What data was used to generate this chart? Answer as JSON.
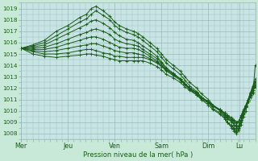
{
  "xlabel": "Pression niveau de la mer( hPa )",
  "bg_color": "#c8e8d8",
  "plot_bg_color": "#c8e4e4",
  "grid_color": "#99bbbb",
  "line_color": "#1a5c1a",
  "ylim": [
    1007.5,
    1019.5
  ],
  "yticks": [
    1008,
    1009,
    1010,
    1011,
    1012,
    1013,
    1014,
    1015,
    1016,
    1017,
    1018,
    1019
  ],
  "day_labels": [
    "Mer",
    "Jeu",
    "Ven",
    "Sam",
    "Dim",
    "Lu"
  ],
  "day_positions": [
    0,
    0.2,
    0.4,
    0.6,
    0.8,
    0.933
  ],
  "xlim": [
    0,
    1.0
  ],
  "series": [
    {
      "points": [
        [
          0,
          1015.5
        ],
        [
          0.05,
          1015.8
        ],
        [
          0.1,
          1016.2
        ],
        [
          0.15,
          1017.0
        ],
        [
          0.2,
          1017.5
        ],
        [
          0.25,
          1018.2
        ],
        [
          0.28,
          1018.5
        ],
        [
          0.3,
          1019.0
        ],
        [
          0.32,
          1019.2
        ],
        [
          0.35,
          1018.8
        ],
        [
          0.38,
          1018.3
        ],
        [
          0.4,
          1017.8
        ],
        [
          0.42,
          1017.5
        ],
        [
          0.45,
          1017.2
        ],
        [
          0.48,
          1017.0
        ],
        [
          0.5,
          1016.8
        ],
        [
          0.52,
          1016.5
        ],
        [
          0.55,
          1016.0
        ],
        [
          0.58,
          1015.5
        ],
        [
          0.6,
          1015.0
        ],
        [
          0.62,
          1014.5
        ],
        [
          0.65,
          1014.0
        ],
        [
          0.68,
          1013.5
        ],
        [
          0.7,
          1013.0
        ],
        [
          0.72,
          1012.5
        ],
        [
          0.75,
          1012.0
        ],
        [
          0.77,
          1011.5
        ],
        [
          0.8,
          1011.0
        ],
        [
          0.82,
          1010.5
        ],
        [
          0.85,
          1010.0
        ],
        [
          0.87,
          1009.5
        ],
        [
          0.88,
          1009.0
        ],
        [
          0.9,
          1008.5
        ],
        [
          0.91,
          1008.2
        ],
        [
          0.92,
          1008.0
        ],
        [
          0.93,
          1008.3
        ],
        [
          0.94,
          1008.8
        ],
        [
          0.95,
          1009.5
        ],
        [
          0.96,
          1010.0
        ],
        [
          0.97,
          1010.8
        ],
        [
          0.98,
          1011.5
        ],
        [
          0.99,
          1012.0
        ],
        [
          1.0,
          1012.5
        ]
      ]
    },
    {
      "points": [
        [
          0,
          1015.5
        ],
        [
          0.05,
          1015.7
        ],
        [
          0.1,
          1016.0
        ],
        [
          0.15,
          1016.6
        ],
        [
          0.2,
          1017.2
        ],
        [
          0.25,
          1017.8
        ],
        [
          0.28,
          1018.1
        ],
        [
          0.3,
          1018.5
        ],
        [
          0.32,
          1018.8
        ],
        [
          0.35,
          1018.4
        ],
        [
          0.38,
          1018.0
        ],
        [
          0.4,
          1017.5
        ],
        [
          0.42,
          1017.2
        ],
        [
          0.45,
          1016.9
        ],
        [
          0.48,
          1016.7
        ],
        [
          0.5,
          1016.5
        ],
        [
          0.52,
          1016.2
        ],
        [
          0.55,
          1015.7
        ],
        [
          0.58,
          1015.2
        ],
        [
          0.6,
          1014.7
        ],
        [
          0.62,
          1014.2
        ],
        [
          0.65,
          1013.7
        ],
        [
          0.68,
          1013.2
        ],
        [
          0.7,
          1012.7
        ],
        [
          0.72,
          1012.2
        ],
        [
          0.75,
          1011.7
        ],
        [
          0.77,
          1011.2
        ],
        [
          0.8,
          1010.7
        ],
        [
          0.82,
          1010.2
        ],
        [
          0.85,
          1009.8
        ],
        [
          0.87,
          1009.4
        ],
        [
          0.88,
          1009.0
        ],
        [
          0.9,
          1008.7
        ],
        [
          0.91,
          1008.4
        ],
        [
          0.92,
          1008.1
        ],
        [
          0.93,
          1008.4
        ],
        [
          0.94,
          1009.0
        ],
        [
          0.95,
          1009.7
        ],
        [
          0.96,
          1010.3
        ],
        [
          0.97,
          1011.0
        ],
        [
          0.98,
          1011.6
        ],
        [
          0.99,
          1012.2
        ],
        [
          1.0,
          1012.8
        ]
      ]
    },
    {
      "points": [
        [
          0,
          1015.5
        ],
        [
          0.05,
          1015.6
        ],
        [
          0.1,
          1015.8
        ],
        [
          0.15,
          1016.3
        ],
        [
          0.2,
          1016.8
        ],
        [
          0.25,
          1017.3
        ],
        [
          0.28,
          1017.6
        ],
        [
          0.3,
          1017.9
        ],
        [
          0.32,
          1018.0
        ],
        [
          0.35,
          1017.7
        ],
        [
          0.38,
          1017.3
        ],
        [
          0.4,
          1016.9
        ],
        [
          0.42,
          1016.6
        ],
        [
          0.45,
          1016.3
        ],
        [
          0.48,
          1016.2
        ],
        [
          0.5,
          1016.0
        ],
        [
          0.52,
          1015.7
        ],
        [
          0.55,
          1015.3
        ],
        [
          0.58,
          1014.8
        ],
        [
          0.6,
          1014.3
        ],
        [
          0.62,
          1013.8
        ],
        [
          0.65,
          1013.3
        ],
        [
          0.68,
          1012.8
        ],
        [
          0.7,
          1012.3
        ],
        [
          0.72,
          1011.9
        ],
        [
          0.75,
          1011.4
        ],
        [
          0.77,
          1011.0
        ],
        [
          0.8,
          1010.5
        ],
        [
          0.82,
          1010.1
        ],
        [
          0.85,
          1009.7
        ],
        [
          0.87,
          1009.3
        ],
        [
          0.88,
          1009.0
        ],
        [
          0.9,
          1008.7
        ],
        [
          0.91,
          1008.5
        ],
        [
          0.92,
          1008.3
        ],
        [
          0.93,
          1008.5
        ],
        [
          0.94,
          1009.1
        ],
        [
          0.95,
          1009.8
        ],
        [
          0.96,
          1010.4
        ],
        [
          0.97,
          1011.0
        ],
        [
          0.98,
          1011.6
        ],
        [
          0.99,
          1012.1
        ],
        [
          1.0,
          1012.6
        ]
      ]
    },
    {
      "points": [
        [
          0,
          1015.5
        ],
        [
          0.05,
          1015.5
        ],
        [
          0.1,
          1015.6
        ],
        [
          0.15,
          1015.9
        ],
        [
          0.2,
          1016.3
        ],
        [
          0.25,
          1016.7
        ],
        [
          0.28,
          1016.9
        ],
        [
          0.3,
          1017.1
        ],
        [
          0.32,
          1017.2
        ],
        [
          0.35,
          1017.0
        ],
        [
          0.38,
          1016.7
        ],
        [
          0.4,
          1016.3
        ],
        [
          0.42,
          1016.1
        ],
        [
          0.45,
          1015.9
        ],
        [
          0.48,
          1015.8
        ],
        [
          0.5,
          1015.7
        ],
        [
          0.52,
          1015.4
        ],
        [
          0.55,
          1015.0
        ],
        [
          0.58,
          1014.6
        ],
        [
          0.6,
          1014.2
        ],
        [
          0.62,
          1013.7
        ],
        [
          0.65,
          1013.3
        ],
        [
          0.68,
          1012.8
        ],
        [
          0.7,
          1012.4
        ],
        [
          0.72,
          1012.0
        ],
        [
          0.75,
          1011.6
        ],
        [
          0.77,
          1011.2
        ],
        [
          0.8,
          1010.8
        ],
        [
          0.82,
          1010.4
        ],
        [
          0.85,
          1010.0
        ],
        [
          0.87,
          1009.6
        ],
        [
          0.88,
          1009.3
        ],
        [
          0.9,
          1009.0
        ],
        [
          0.91,
          1008.8
        ],
        [
          0.92,
          1008.5
        ],
        [
          0.93,
          1008.6
        ],
        [
          0.94,
          1009.2
        ],
        [
          0.95,
          1009.8
        ],
        [
          0.96,
          1010.4
        ],
        [
          0.97,
          1011.0
        ],
        [
          0.98,
          1011.5
        ],
        [
          0.99,
          1012.0
        ],
        [
          1.0,
          1012.5
        ]
      ]
    },
    {
      "points": [
        [
          0,
          1015.5
        ],
        [
          0.05,
          1015.4
        ],
        [
          0.1,
          1015.4
        ],
        [
          0.15,
          1015.6
        ],
        [
          0.2,
          1015.9
        ],
        [
          0.25,
          1016.2
        ],
        [
          0.28,
          1016.4
        ],
        [
          0.3,
          1016.5
        ],
        [
          0.32,
          1016.5
        ],
        [
          0.35,
          1016.3
        ],
        [
          0.38,
          1016.0
        ],
        [
          0.4,
          1015.8
        ],
        [
          0.42,
          1015.6
        ],
        [
          0.45,
          1015.5
        ],
        [
          0.48,
          1015.5
        ],
        [
          0.5,
          1015.4
        ],
        [
          0.52,
          1015.2
        ],
        [
          0.55,
          1014.8
        ],
        [
          0.58,
          1014.4
        ],
        [
          0.6,
          1014.0
        ],
        [
          0.62,
          1013.6
        ],
        [
          0.65,
          1013.2
        ],
        [
          0.68,
          1012.8
        ],
        [
          0.7,
          1012.4
        ],
        [
          0.72,
          1012.0
        ],
        [
          0.75,
          1011.6
        ],
        [
          0.77,
          1011.2
        ],
        [
          0.8,
          1010.8
        ],
        [
          0.82,
          1010.4
        ],
        [
          0.85,
          1010.1
        ],
        [
          0.87,
          1009.7
        ],
        [
          0.88,
          1009.4
        ],
        [
          0.9,
          1009.1
        ],
        [
          0.91,
          1008.8
        ],
        [
          0.92,
          1008.6
        ],
        [
          0.93,
          1008.7
        ],
        [
          0.94,
          1009.2
        ],
        [
          0.95,
          1009.8
        ],
        [
          0.96,
          1010.3
        ],
        [
          0.97,
          1010.8
        ],
        [
          0.98,
          1011.3
        ],
        [
          0.99,
          1011.8
        ],
        [
          1.0,
          1012.3
        ]
      ]
    },
    {
      "points": [
        [
          0,
          1015.5
        ],
        [
          0.05,
          1015.3
        ],
        [
          0.1,
          1015.2
        ],
        [
          0.15,
          1015.3
        ],
        [
          0.2,
          1015.5
        ],
        [
          0.25,
          1015.7
        ],
        [
          0.28,
          1015.8
        ],
        [
          0.3,
          1015.9
        ],
        [
          0.32,
          1015.9
        ],
        [
          0.35,
          1015.7
        ],
        [
          0.38,
          1015.5
        ],
        [
          0.4,
          1015.3
        ],
        [
          0.42,
          1015.2
        ],
        [
          0.45,
          1015.1
        ],
        [
          0.48,
          1015.1
        ],
        [
          0.5,
          1015.0
        ],
        [
          0.52,
          1014.9
        ],
        [
          0.55,
          1014.6
        ],
        [
          0.58,
          1014.3
        ],
        [
          0.6,
          1014.0
        ],
        [
          0.62,
          1013.6
        ],
        [
          0.65,
          1013.2
        ],
        [
          0.68,
          1012.8
        ],
        [
          0.7,
          1012.4
        ],
        [
          0.72,
          1012.0
        ],
        [
          0.75,
          1011.6
        ],
        [
          0.77,
          1011.2
        ],
        [
          0.8,
          1010.8
        ],
        [
          0.82,
          1010.5
        ],
        [
          0.85,
          1010.1
        ],
        [
          0.87,
          1009.8
        ],
        [
          0.88,
          1009.5
        ],
        [
          0.9,
          1009.2
        ],
        [
          0.91,
          1009.0
        ],
        [
          0.92,
          1008.8
        ],
        [
          0.93,
          1009.0
        ],
        [
          0.94,
          1009.5
        ],
        [
          0.95,
          1010.0
        ],
        [
          0.96,
          1010.5
        ],
        [
          0.97,
          1011.0
        ],
        [
          0.98,
          1011.4
        ],
        [
          0.99,
          1011.8
        ],
        [
          1.0,
          1012.2
        ]
      ]
    },
    {
      "points": [
        [
          0,
          1015.5
        ],
        [
          0.05,
          1015.2
        ],
        [
          0.1,
          1015.0
        ],
        [
          0.15,
          1015.0
        ],
        [
          0.2,
          1015.1
        ],
        [
          0.25,
          1015.3
        ],
        [
          0.28,
          1015.4
        ],
        [
          0.3,
          1015.4
        ],
        [
          0.32,
          1015.3
        ],
        [
          0.35,
          1015.1
        ],
        [
          0.38,
          1015.0
        ],
        [
          0.4,
          1014.8
        ],
        [
          0.42,
          1014.8
        ],
        [
          0.45,
          1014.7
        ],
        [
          0.48,
          1014.7
        ],
        [
          0.5,
          1014.7
        ],
        [
          0.52,
          1014.7
        ],
        [
          0.55,
          1014.5
        ],
        [
          0.58,
          1014.2
        ],
        [
          0.6,
          1013.9
        ],
        [
          0.62,
          1013.5
        ],
        [
          0.65,
          1013.1
        ],
        [
          0.68,
          1012.7
        ],
        [
          0.7,
          1012.3
        ],
        [
          0.72,
          1011.9
        ],
        [
          0.75,
          1011.5
        ],
        [
          0.77,
          1011.1
        ],
        [
          0.8,
          1010.8
        ],
        [
          0.82,
          1010.4
        ],
        [
          0.85,
          1010.1
        ],
        [
          0.87,
          1009.8
        ],
        [
          0.88,
          1009.6
        ],
        [
          0.9,
          1009.3
        ],
        [
          0.91,
          1009.1
        ],
        [
          0.92,
          1009.0
        ],
        [
          0.93,
          1009.1
        ],
        [
          0.94,
          1009.6
        ],
        [
          0.95,
          1010.1
        ],
        [
          0.96,
          1010.5
        ],
        [
          0.97,
          1011.0
        ],
        [
          0.98,
          1011.3
        ],
        [
          0.99,
          1011.7
        ],
        [
          1.0,
          1012.1
        ]
      ]
    },
    {
      "points": [
        [
          0,
          1015.5
        ],
        [
          0.05,
          1015.0
        ],
        [
          0.1,
          1014.8
        ],
        [
          0.15,
          1014.7
        ],
        [
          0.2,
          1014.8
        ],
        [
          0.25,
          1014.9
        ],
        [
          0.28,
          1015.0
        ],
        [
          0.3,
          1015.0
        ],
        [
          0.32,
          1014.9
        ],
        [
          0.35,
          1014.8
        ],
        [
          0.38,
          1014.6
        ],
        [
          0.4,
          1014.5
        ],
        [
          0.42,
          1014.4
        ],
        [
          0.45,
          1014.4
        ],
        [
          0.48,
          1014.4
        ],
        [
          0.5,
          1014.4
        ],
        [
          0.52,
          1014.4
        ],
        [
          0.55,
          1014.2
        ],
        [
          0.58,
          1013.9
        ],
        [
          0.6,
          1013.6
        ],
        [
          0.62,
          1013.2
        ],
        [
          0.65,
          1012.9
        ],
        [
          0.68,
          1012.5
        ],
        [
          0.7,
          1012.1
        ],
        [
          0.72,
          1011.8
        ],
        [
          0.75,
          1011.4
        ],
        [
          0.77,
          1011.0
        ],
        [
          0.8,
          1010.7
        ],
        [
          0.82,
          1010.4
        ],
        [
          0.85,
          1010.1
        ],
        [
          0.87,
          1009.8
        ],
        [
          0.88,
          1009.6
        ],
        [
          0.9,
          1009.4
        ],
        [
          0.91,
          1009.2
        ],
        [
          0.92,
          1009.0
        ],
        [
          0.93,
          1009.1
        ],
        [
          0.94,
          1009.5
        ],
        [
          0.95,
          1010.0
        ],
        [
          0.96,
          1010.4
        ],
        [
          0.97,
          1010.8
        ],
        [
          0.98,
          1011.2
        ],
        [
          0.99,
          1011.5
        ],
        [
          1.0,
          1014.0
        ]
      ]
    }
  ]
}
